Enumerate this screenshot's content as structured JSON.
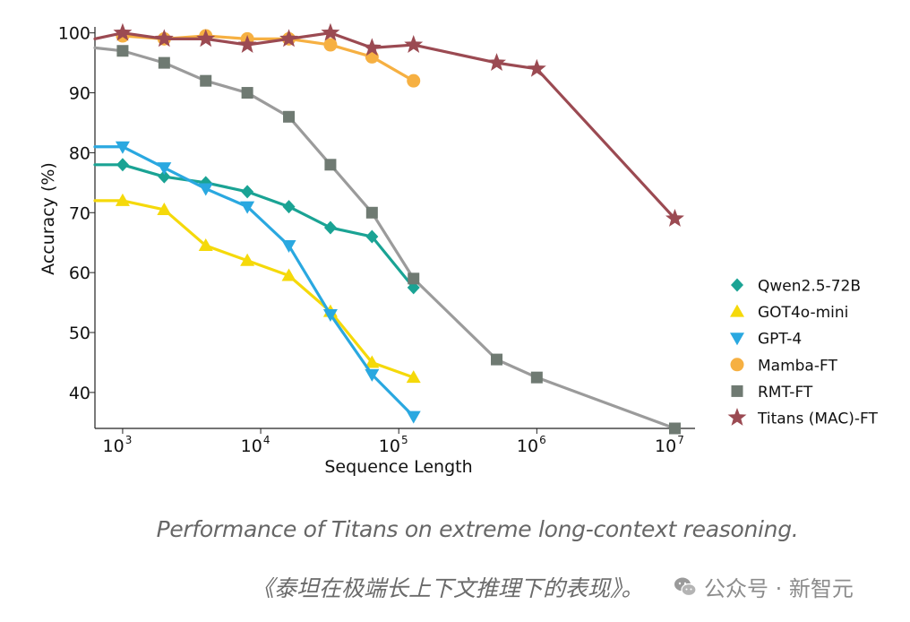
{
  "chart_data": {
    "type": "line",
    "xlabel": "Sequence Length",
    "ylabel": "Accuracy (%)",
    "xscale": "log",
    "xlim": [
      630,
      14000000
    ],
    "ylim": [
      34,
      101
    ],
    "yticks": [
      40,
      50,
      60,
      70,
      80,
      90,
      100
    ],
    "xticks": [
      {
        "base": "10",
        "exp": "3",
        "value": 1000
      },
      {
        "base": "10",
        "exp": "4",
        "value": 10000
      },
      {
        "base": "10",
        "exp": "5",
        "value": 100000
      },
      {
        "base": "10",
        "exp": "6",
        "value": 1000000
      },
      {
        "base": "10",
        "exp": "7",
        "value": 10000000
      }
    ],
    "legend_position": "right",
    "grid": false,
    "series": [
      {
        "name": "Qwen2.5-72B",
        "color": "#1aa394",
        "marker": "diamond",
        "x": [
          630,
          1000,
          2000,
          4000,
          8000,
          16000,
          32000,
          64000,
          128000
        ],
        "y": [
          78,
          78,
          76,
          75,
          73.5,
          71,
          67.5,
          66,
          57.5
        ]
      },
      {
        "name": "GOT4o-mini",
        "color": "#f5d90a",
        "marker": "triangle-up",
        "x": [
          630,
          1000,
          2000,
          4000,
          8000,
          16000,
          32000,
          64000,
          128000
        ],
        "y": [
          72,
          72,
          70.5,
          64.5,
          62,
          59.5,
          53.5,
          45,
          42.5
        ]
      },
      {
        "name": "GPT-4",
        "color": "#2aa8e0",
        "marker": "triangle-down",
        "x": [
          630,
          1000,
          2000,
          4000,
          8000,
          16000,
          32000,
          64000,
          128000
        ],
        "y": [
          81,
          81,
          77.5,
          74,
          71,
          64.5,
          53,
          43,
          36
        ]
      },
      {
        "name": "Mamba-FT",
        "color": "#f6b042",
        "marker": "circle",
        "x": [
          1000,
          2000,
          4000,
          8000,
          16000,
          32000,
          64000,
          128000
        ],
        "y": [
          99.5,
          99,
          99.5,
          99,
          99,
          98,
          96,
          92
        ]
      },
      {
        "name": "RMT-FT",
        "color": "#9b9b9b",
        "markerColor": "#6f7a72",
        "marker": "square",
        "x": [
          630,
          1000,
          2000,
          4000,
          8000,
          16000,
          32000,
          64000,
          128000,
          512000,
          1000000,
          10000000
        ],
        "y": [
          97.5,
          97,
          95,
          92,
          90,
          86,
          78,
          70,
          59,
          45.5,
          42.5,
          34
        ]
      },
      {
        "name": "Titans (MAC)-FT",
        "color": "#9b4a52",
        "marker": "star",
        "x": [
          630,
          1000,
          2000,
          4000,
          8000,
          16000,
          32000,
          64000,
          128000,
          512000,
          1000000,
          10000000
        ],
        "y": [
          99,
          100,
          99,
          99,
          98,
          99,
          100,
          97.5,
          98,
          95,
          94,
          69
        ]
      }
    ]
  },
  "captions": {
    "english": "Performance of Titans on extreme long-context reasoning.",
    "chinese": "《泰坦在极端长上下文推理下的表现》。"
  },
  "watermark": {
    "text": "公众号 · 新智元",
    "icon": "wechat-icon"
  }
}
